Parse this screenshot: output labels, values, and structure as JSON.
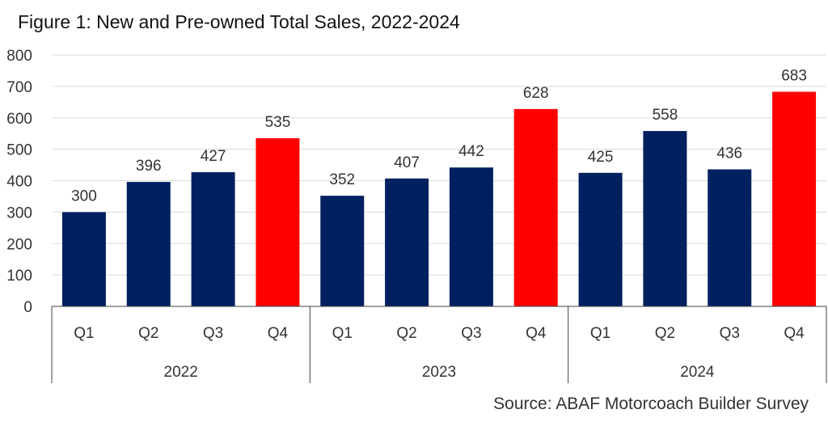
{
  "title": "Figure 1: New and Pre-owned Total Sales, 2022-2024",
  "source": "Source: ABAF Motorcoach Builder Survey",
  "colors": {
    "regular": "#002060",
    "highlight": "#FF0000",
    "grid": "#D9D9D9",
    "axis": "#404040"
  },
  "chart_data": {
    "type": "bar",
    "title": "Figure 1: New and Pre-owned Total Sales, 2022-2024",
    "xlabel": "",
    "ylabel": "",
    "ylim": [
      0,
      800
    ],
    "yticks": [
      0,
      100,
      200,
      300,
      400,
      500,
      600,
      700,
      800
    ],
    "grid": true,
    "legend": "none",
    "groups": [
      {
        "year": "2022",
        "quarters": [
          "Q1",
          "Q2",
          "Q3",
          "Q4"
        ],
        "values": [
          300,
          396,
          427,
          535
        ]
      },
      {
        "year": "2023",
        "quarters": [
          "Q1",
          "Q2",
          "Q3",
          "Q4"
        ],
        "values": [
          352,
          407,
          442,
          628
        ]
      },
      {
        "year": "2024",
        "quarters": [
          "Q1",
          "Q2",
          "Q3",
          "Q4"
        ],
        "values": [
          425,
          558,
          436,
          683
        ]
      }
    ],
    "highlight_quarter": "Q4"
  }
}
